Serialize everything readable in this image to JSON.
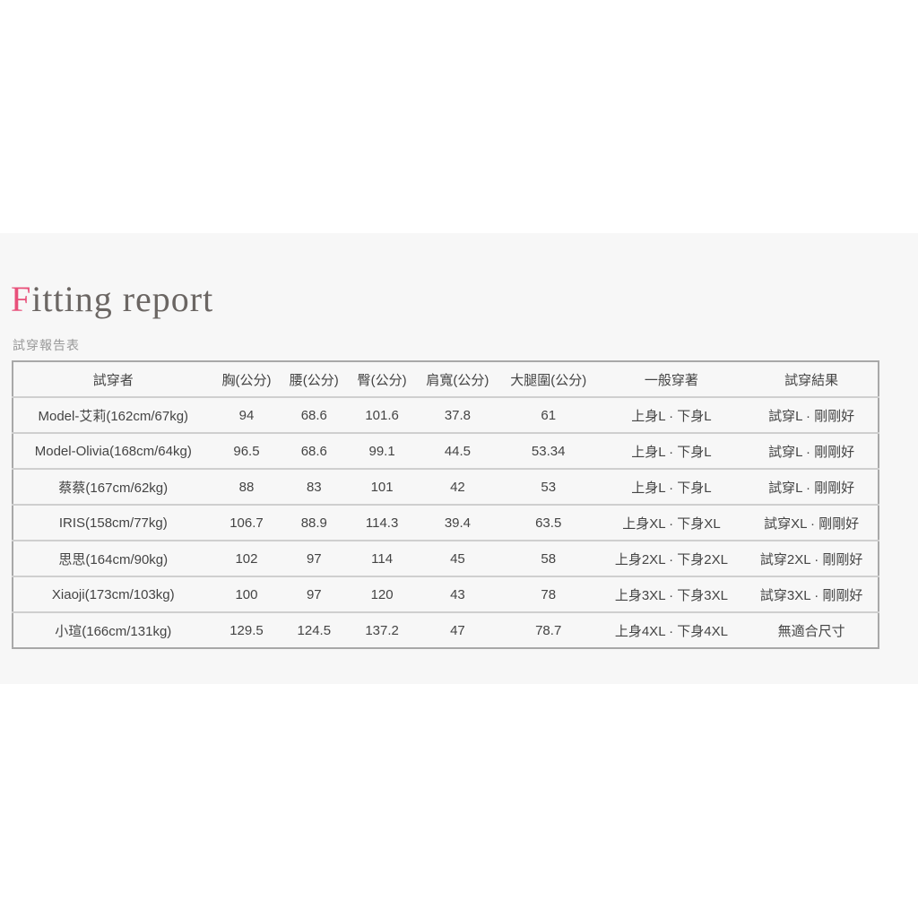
{
  "title_first": "F",
  "title_rest": "itting report",
  "subtitle": "試穿報告表",
  "accent_color": "#e8507a",
  "table": {
    "headers": [
      "試穿者",
      "胸(公分)",
      "腰(公分)",
      "臀(公分)",
      "肩寬(公分)",
      "大腿圍(公分)",
      "一般穿著",
      "試穿結果"
    ],
    "rows": [
      [
        "Model-艾莉(162cm/67kg)",
        "94",
        "68.6",
        "101.6",
        "37.8",
        "61",
        "上身L · 下身L",
        "試穿L · 剛剛好"
      ],
      [
        "Model-Olivia(168cm/64kg)",
        "96.5",
        "68.6",
        "99.1",
        "44.5",
        "53.34",
        "上身L · 下身L",
        "試穿L · 剛剛好"
      ],
      [
        "蔡蔡(167cm/62kg)",
        "88",
        "83",
        "101",
        "42",
        "53",
        "上身L · 下身L",
        "試穿L · 剛剛好"
      ],
      [
        "IRIS(158cm/77kg)",
        "106.7",
        "88.9",
        "114.3",
        "39.4",
        "63.5",
        "上身XL · 下身XL",
        "試穿XL · 剛剛好"
      ],
      [
        "思思(164cm/90kg)",
        "102",
        "97",
        "114",
        "45",
        "58",
        "上身2XL · 下身2XL",
        "試穿2XL · 剛剛好"
      ],
      [
        "Xiaoji(173cm/103kg)",
        "100",
        "97",
        "120",
        "43",
        "78",
        "上身3XL · 下身3XL",
        "試穿3XL · 剛剛好"
      ],
      [
        "小瑄(166cm/131kg)",
        "129.5",
        "124.5",
        "137.2",
        "47",
        "78.7",
        "上身4XL · 下身4XL",
        "無適合尺寸"
      ]
    ]
  }
}
